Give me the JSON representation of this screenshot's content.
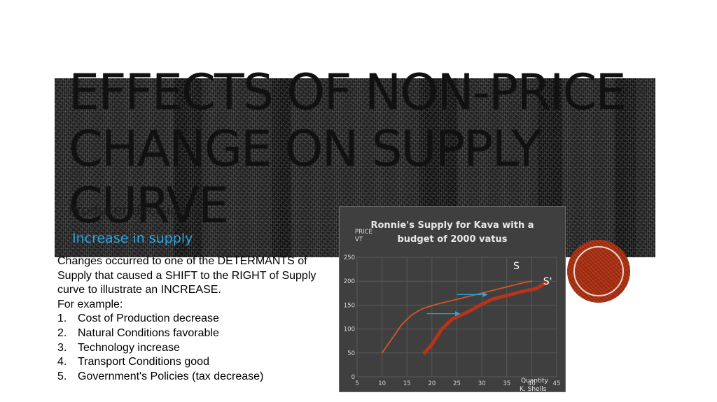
{
  "slide": {
    "title": "EFFECTS OF NON-PRICE CHANGE ON SUPPLY CURVE",
    "subtitle_1": "Producer decision",
    "subtitle_2": "Increase in supply",
    "accent_color": "#2aa7e6",
    "badge_color": "#a42d10",
    "body_intro": "Changes occurred to one of the DETERMANTS of Supply that caused a SHIFT to the RIGHT of Supply curve to illustrate an INCREASE.",
    "example_label": "For example:",
    "examples": [
      {
        "num": "1.",
        "text": "Cost of Production decrease"
      },
      {
        "num": "2.",
        "text": "Natural Conditions favorable"
      },
      {
        "num": "3.",
        "text": "Technology increase"
      },
      {
        "num": "4.",
        "text": "Transport Conditions good"
      },
      {
        "num": "5.",
        "text": "Government's Policies (tax decrease)"
      }
    ]
  },
  "chart_data": {
    "type": "line",
    "title_line1": "Ronnie's Supply for Kava with a",
    "title_line2": "budget of 2000 vatus",
    "ylabel_line1": "PRICE",
    "ylabel_line2": "VT",
    "xlabel": "Quantity",
    "credit": "K. Shells",
    "xlim": [
      5,
      45
    ],
    "ylim": [
      0,
      250
    ],
    "xticks": [
      5,
      10,
      15,
      20,
      25,
      30,
      35,
      40,
      45
    ],
    "yticks": [
      0,
      50,
      100,
      150,
      200,
      250
    ],
    "grid": true,
    "background_color": "#3f3f3f",
    "series": [
      {
        "name": "S",
        "color": "#d4552a",
        "points": [
          [
            10,
            50
          ],
          [
            12,
            80
          ],
          [
            14,
            110
          ],
          [
            16,
            130
          ],
          [
            18,
            142
          ],
          [
            21,
            152
          ],
          [
            25,
            162
          ],
          [
            30,
            175
          ],
          [
            35,
            188
          ],
          [
            38,
            196
          ],
          [
            40,
            200
          ]
        ]
      },
      {
        "name": "S'",
        "color": "#b5341a",
        "points": [
          [
            18.5,
            50
          ],
          [
            20,
            68
          ],
          [
            22,
            100
          ],
          [
            24,
            120
          ],
          [
            26,
            130
          ],
          [
            28,
            140
          ],
          [
            30,
            152
          ],
          [
            32,
            162
          ],
          [
            35,
            170
          ],
          [
            38,
            178
          ],
          [
            41,
            185
          ],
          [
            43,
            198
          ]
        ]
      }
    ],
    "arrows": [
      {
        "from": [
          19,
          132
        ],
        "to": [
          25.5,
          132
        ]
      },
      {
        "from": [
          25,
          172
        ],
        "to": [
          31,
          172
        ]
      }
    ],
    "arrow_color": "#2aa7e6"
  }
}
